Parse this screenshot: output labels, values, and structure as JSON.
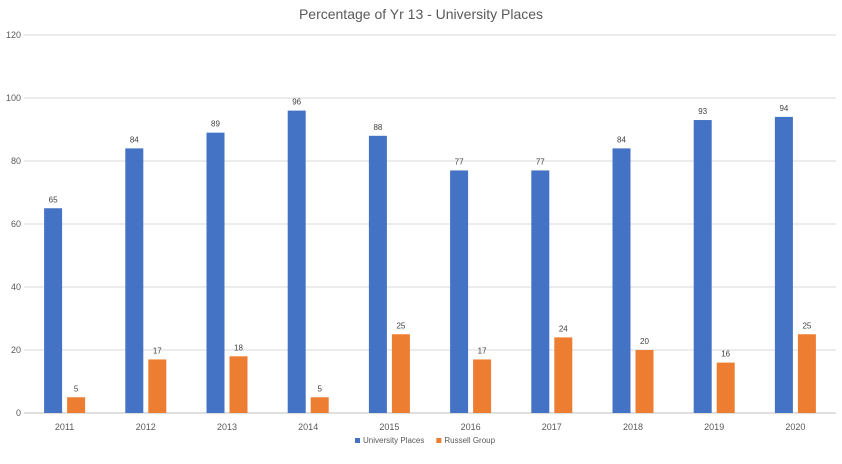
{
  "chart_data": {
    "type": "bar",
    "title": "Percentage of Yr 13  - University Places",
    "categories": [
      "2011",
      "2012",
      "2013",
      "2014",
      "2015",
      "2016",
      "2017",
      "2018",
      "2019",
      "2020"
    ],
    "series": [
      {
        "name": "University Places",
        "color": "#4472c4",
        "values": [
          65,
          84,
          89,
          96,
          88,
          77,
          77,
          84,
          93,
          94
        ]
      },
      {
        "name": "Russell Group",
        "color": "#ed7d31",
        "values": [
          5,
          17,
          18,
          5,
          25,
          17,
          24,
          20,
          16,
          25
        ]
      }
    ],
    "ylim": [
      0,
      120
    ],
    "yticks": [
      0,
      20,
      40,
      60,
      80,
      100,
      120
    ],
    "grid": true,
    "legend_position": "bottom",
    "data_labels": true
  }
}
